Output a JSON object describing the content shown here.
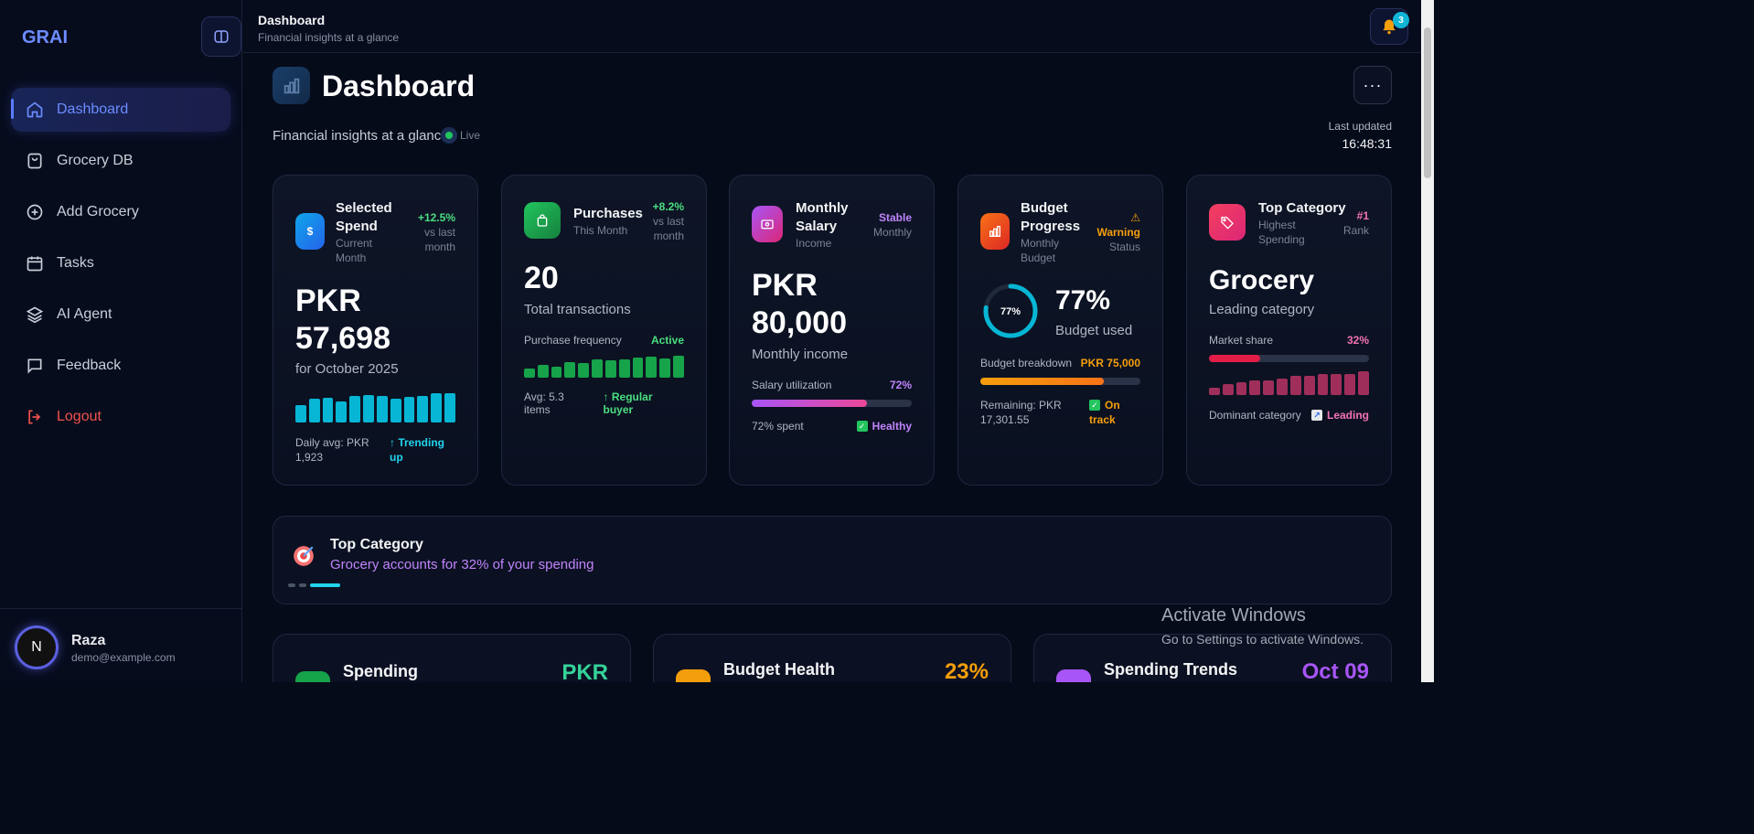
{
  "sidebar": {
    "brand": "GRAI",
    "items": [
      {
        "label": "Dashboard",
        "icon": "home-icon"
      },
      {
        "label": "Grocery DB",
        "icon": "shopping-bag-icon"
      },
      {
        "label": "Add Grocery",
        "icon": "plus-circle-icon"
      },
      {
        "label": "Tasks",
        "icon": "calendar-icon"
      },
      {
        "label": "AI Agent",
        "icon": "layers-icon"
      },
      {
        "label": "Feedback",
        "icon": "message-icon"
      },
      {
        "label": "Logout",
        "icon": "logout-icon"
      }
    ],
    "user": {
      "initial": "N",
      "name": "Raza",
      "email": "demo@example.com"
    }
  },
  "topbar": {
    "title": "Dashboard",
    "subtitle": "Financial insights at a glance",
    "notification_count": "3"
  },
  "header": {
    "title": "Dashboard",
    "subtitle": "Financial insights at a glance",
    "live": "Live",
    "more": "···",
    "last_updated_label": "Last updated",
    "last_updated_value": "16:48:31"
  },
  "cards": {
    "spend": {
      "title1": "Selected",
      "title2": "Spend",
      "sub1": "Current",
      "sub2": "Month",
      "change": "+12.5%",
      "change_sub1": "vs last",
      "change_sub2": "month",
      "value1": "PKR",
      "value2": "57,698",
      "desc": "for October 2025",
      "daily_avg1": "Daily avg: PKR",
      "daily_avg2": "1,923",
      "trend1": "↑ Trending",
      "trend2": "up",
      "bars": [
        0.6,
        0.8,
        0.85,
        0.72,
        0.9,
        0.95,
        0.92,
        0.8,
        0.88,
        0.9,
        1.0,
        1.0
      ],
      "color": "#06b6d4"
    },
    "purchases": {
      "title": "Purchases",
      "sub": "This Month",
      "change": "+8.2%",
      "change_sub1": "vs last",
      "change_sub2": "month",
      "value": "20",
      "desc": "Total transactions",
      "freq_label": "Purchase frequency",
      "freq_status": "Active",
      "avg": "Avg: 5.3 items",
      "buyer": "↑ Regular buyer",
      "bars": [
        0.4,
        0.6,
        0.5,
        0.7,
        0.65,
        0.85,
        0.8,
        0.82,
        0.9,
        0.95,
        0.88,
        1.0
      ],
      "color": "#16a34a"
    },
    "salary": {
      "title1": "Monthly",
      "title2": "Salary",
      "sub": "Income",
      "status": "Stable",
      "status_sub": "Monthly",
      "value1": "PKR",
      "value2": "80,000",
      "desc": "Monthly income",
      "util_label": "Salary utilization",
      "util_value": "72%",
      "util_fraction": 0.72,
      "spent": "72% spent",
      "health": "Healthy"
    },
    "budget": {
      "title1": "Budget",
      "title2": "Progress",
      "sub1": "Monthly",
      "sub2": "Budget",
      "status": "Warning",
      "status_sub": "Status",
      "ring_label": "77%",
      "ring_fraction": 0.77,
      "value": "77%",
      "desc": "Budget used",
      "breakdown_label": "Budget breakdown",
      "breakdown_value": "PKR 75,000",
      "remaining1": "Remaining: PKR",
      "remaining2": "17,301.55",
      "track1": "On",
      "track2": "track"
    },
    "category": {
      "title": "Top Category",
      "sub1": "Highest",
      "sub2": "Spending",
      "rank": "#1",
      "rank_sub": "Rank",
      "value": "Grocery",
      "desc": "Leading category",
      "share_label": "Market share",
      "share_value": "32%",
      "share_fraction": 0.32,
      "dominant": "Dominant category",
      "leading": "Leading",
      "bars": [
        0.3,
        0.45,
        0.55,
        0.6,
        0.6,
        0.7,
        0.8,
        0.8,
        0.9,
        0.9,
        0.9,
        1.0
      ],
      "color": "#9f2f5a"
    }
  },
  "banner": {
    "title": "Top Category",
    "subtitle": "Grocery accounts for 32% of your spending"
  },
  "bottom_cards": [
    {
      "title": "Spending",
      "value": "PKR",
      "color": "#34d399"
    },
    {
      "title": "Budget Health",
      "value": "23%",
      "color": "#f59e0b"
    },
    {
      "title": "Spending Trends",
      "value": "Oct 09",
      "color": "#a855f7"
    }
  ],
  "watermark": {
    "line1": "Activate Windows",
    "line2": "Go to Settings to activate Windows."
  }
}
